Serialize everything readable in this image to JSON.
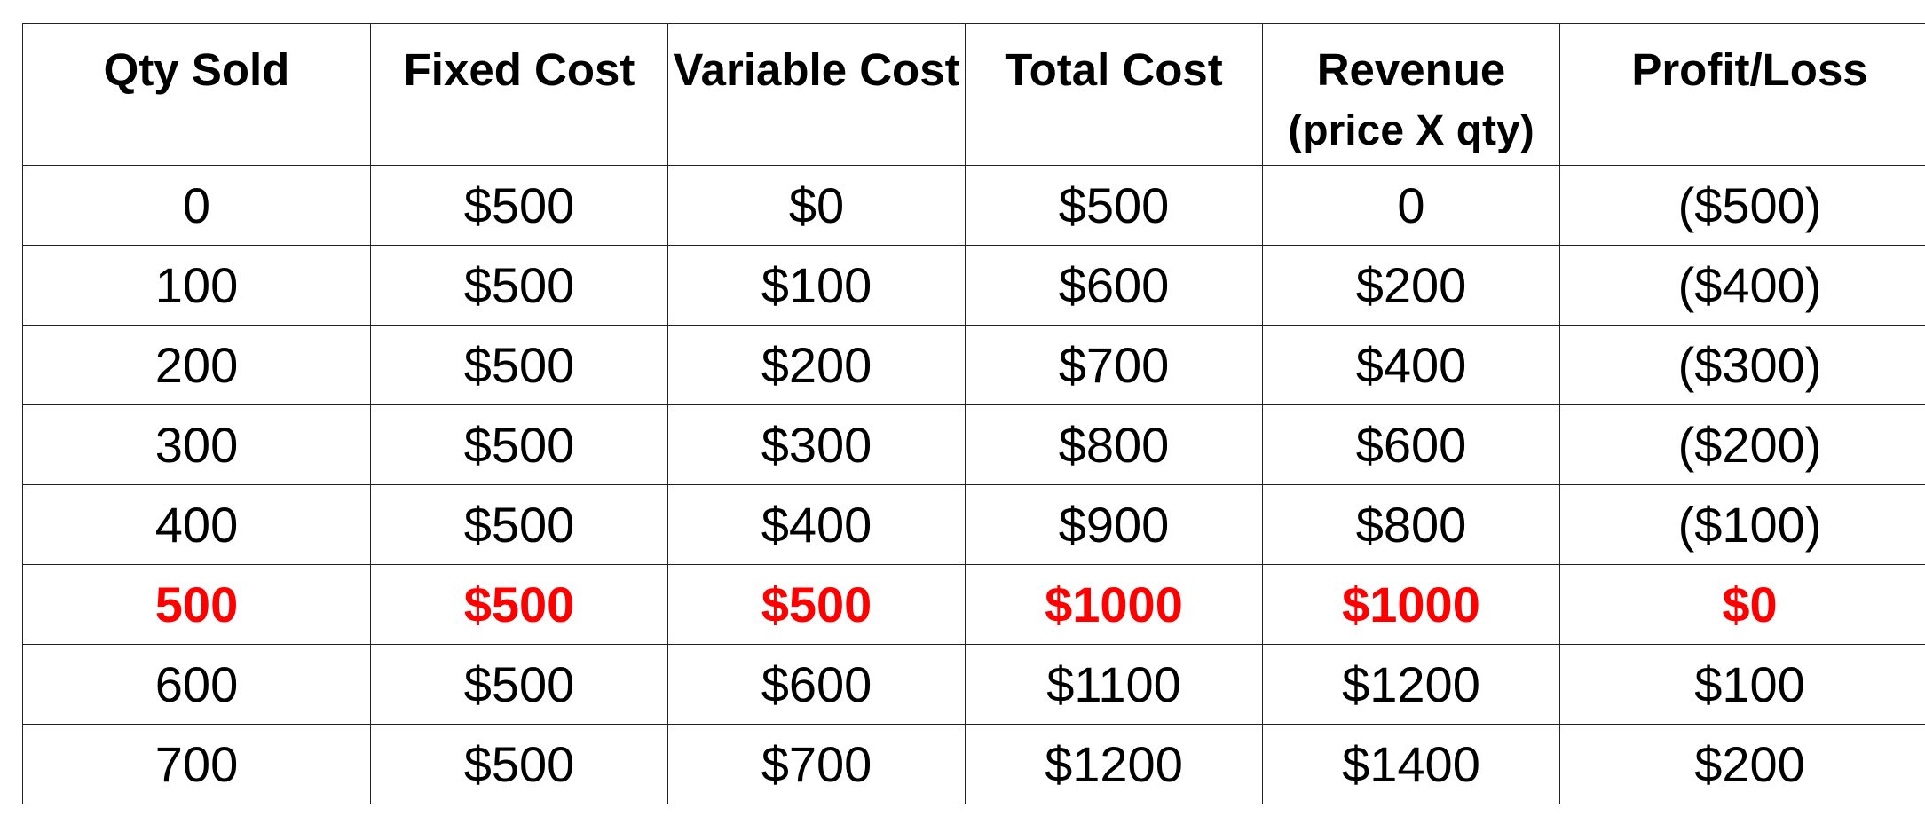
{
  "chart_data": {
    "type": "table",
    "columns": [
      {
        "label": "Qty Sold",
        "sub": ""
      },
      {
        "label": "Fixed Cost",
        "sub": ""
      },
      {
        "label": "Variable Cost",
        "sub": ""
      },
      {
        "label": "Total Cost",
        "sub": ""
      },
      {
        "label": "Revenue",
        "sub": "(price X qty)"
      },
      {
        "label": "Profit/Loss",
        "sub": ""
      }
    ],
    "rows": [
      [
        "0",
        "$500",
        "$0",
        "$500",
        "0",
        "($500)"
      ],
      [
        "100",
        "$500",
        "$100",
        "$600",
        "$200",
        "($400)"
      ],
      [
        "200",
        "$500",
        "$200",
        "$700",
        "$400",
        "($300)"
      ],
      [
        "300",
        "$500",
        "$300",
        "$800",
        "$600",
        "($200)"
      ],
      [
        "400",
        "$500",
        "$400",
        "$900",
        "$800",
        "($100)"
      ],
      [
        "500",
        "$500",
        "$500",
        "$1000",
        "$1000",
        "$0"
      ],
      [
        "600",
        "$500",
        "$600",
        "$1100",
        "$1200",
        "$100"
      ],
      [
        "700",
        "$500",
        "$700",
        "$1200",
        "$1400",
        "$200"
      ]
    ],
    "highlight_row": 5,
    "highlight_color": "#ff0000"
  }
}
